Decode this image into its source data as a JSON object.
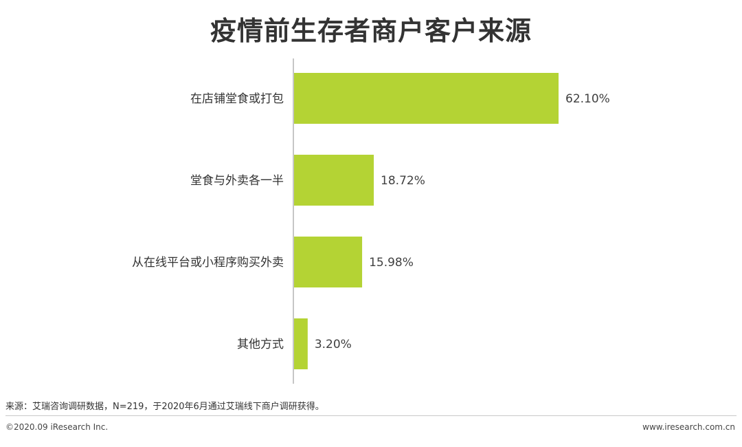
{
  "chart_data": {
    "type": "bar",
    "orientation": "horizontal",
    "title": "疫情前生存者商户客户来源",
    "categories": [
      "在店铺堂食或打包",
      "堂食与外卖各一半",
      "从在线平台或小程序购买外卖",
      "其他方式"
    ],
    "values": [
      62.1,
      18.72,
      15.98,
      3.2
    ],
    "value_labels": [
      "62.10%",
      "18.72%",
      "15.98%",
      "3.20%"
    ],
    "unit": "%",
    "xlim": [
      0,
      70
    ],
    "grid": false,
    "bar_color": "#b4d334"
  },
  "footer": {
    "source": "来源：艾瑞咨询调研数据，N=219，于2020年6月通过艾瑞线下商户调研获得。",
    "copyright": "©2020.09 iResearch Inc.",
    "website": "www.iresearch.com.cn"
  }
}
